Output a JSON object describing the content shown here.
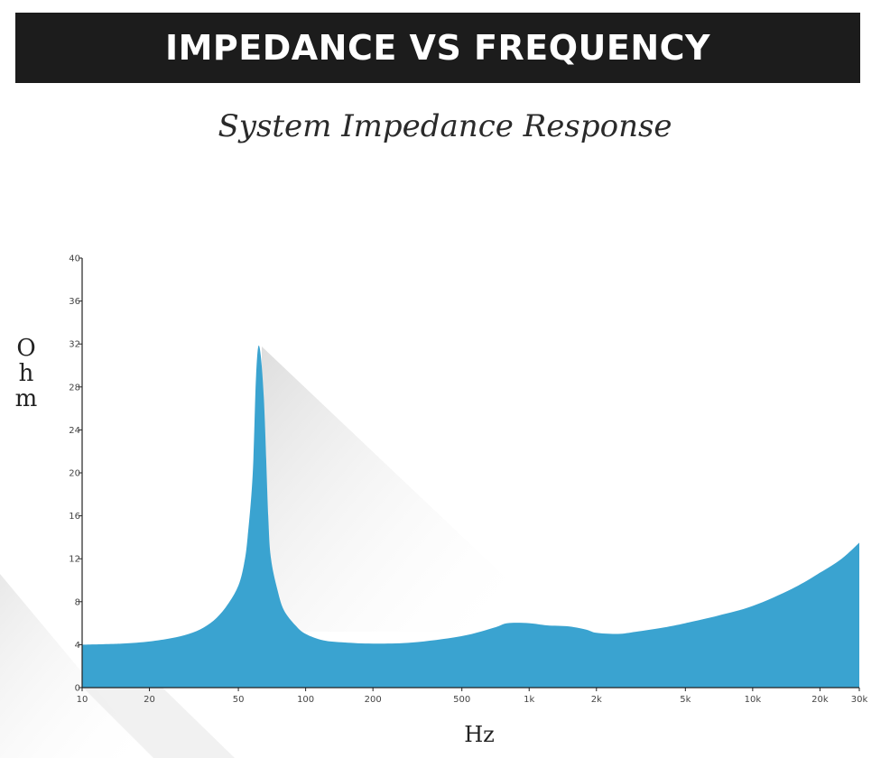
{
  "header": {
    "title": "IMPEDANCE VS FREQUENCY"
  },
  "colors": {
    "fill": "#3aa3d0",
    "title_bg": "#1c1c1c",
    "shadow": "#e3e3e3"
  },
  "chart_data": {
    "type": "area",
    "title": "System Impedance Response",
    "xlabel": "Hz",
    "ylabel": "Ohm",
    "x_scale": "log",
    "xlim": [
      10,
      30000
    ],
    "ylim": [
      0,
      40
    ],
    "grid": false,
    "x_ticks": [
      {
        "value": 10,
        "label": "10"
      },
      {
        "value": 20,
        "label": "20"
      },
      {
        "value": 50,
        "label": "50"
      },
      {
        "value": 100,
        "label": "100"
      },
      {
        "value": 200,
        "label": "200"
      },
      {
        "value": 500,
        "label": "500"
      },
      {
        "value": 1000,
        "label": "1k"
      },
      {
        "value": 2000,
        "label": "2k"
      },
      {
        "value": 5000,
        "label": "5k"
      },
      {
        "value": 10000,
        "label": "10k"
      },
      {
        "value": 20000,
        "label": "20k"
      },
      {
        "value": 30000,
        "label": "30k"
      }
    ],
    "y_ticks": [
      0,
      4,
      8,
      12,
      16,
      20,
      24,
      28,
      32,
      36,
      40
    ],
    "series": [
      {
        "x": [
          10,
          15,
          20,
          25,
          30,
          35,
          40,
          45,
          50,
          53,
          55,
          58,
          60,
          62,
          65,
          68,
          70,
          75,
          80,
          90,
          100,
          120,
          150,
          200,
          300,
          500,
          700,
          800,
          1000,
          1200,
          1500,
          1800,
          2000,
          2500,
          3000,
          4000,
          5000,
          7000,
          10000,
          15000,
          20000,
          25000,
          30000
        ],
        "y": [
          4.0,
          4.1,
          4.3,
          4.6,
          5.0,
          5.6,
          6.5,
          7.8,
          9.5,
          11.5,
          14.0,
          20.0,
          29.0,
          31.8,
          27.0,
          16.0,
          12.0,
          9.0,
          7.2,
          5.8,
          5.0,
          4.4,
          4.2,
          4.1,
          4.2,
          4.8,
          5.6,
          6.0,
          6.0,
          5.8,
          5.7,
          5.4,
          5.1,
          5.0,
          5.2,
          5.6,
          6.0,
          6.7,
          7.6,
          9.2,
          10.7,
          12.0,
          13.5
        ]
      }
    ]
  }
}
